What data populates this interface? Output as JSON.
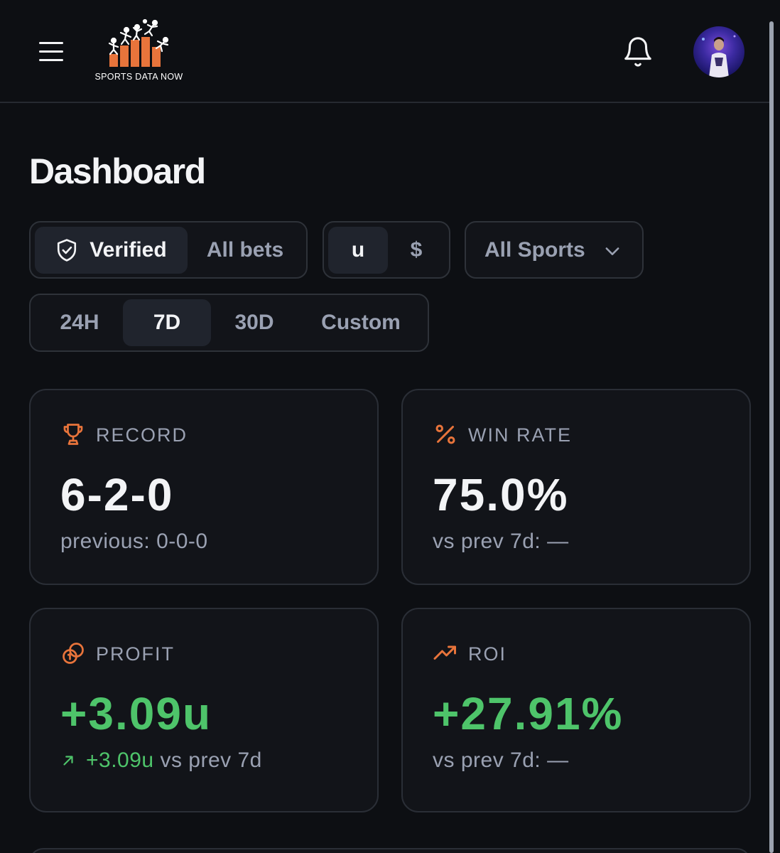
{
  "header": {
    "logo_text": "SPORTS DATA NOW"
  },
  "page_title": "Dashboard",
  "filters": {
    "verification": [
      {
        "label": "Verified",
        "active": true
      },
      {
        "label": "All bets",
        "active": false
      }
    ],
    "units": [
      {
        "label": "u",
        "active": true
      },
      {
        "label": "$",
        "active": false
      }
    ],
    "sport_select": {
      "label": "All Sports"
    },
    "periods": [
      {
        "label": "24H",
        "active": false
      },
      {
        "label": "7D",
        "active": true
      },
      {
        "label": "30D",
        "active": false
      },
      {
        "label": "Custom",
        "active": false
      }
    ]
  },
  "cards": {
    "record": {
      "label": "RECORD",
      "value": "6-2-0",
      "sub": "previous: 0-0-0"
    },
    "win_rate": {
      "label": "WIN RATE",
      "value": "75.0%",
      "sub": "vs prev 7d: —"
    },
    "profit": {
      "label": "PROFIT",
      "value": "+3.09u",
      "sub_delta": "+3.09u",
      "sub_text": "vs prev 7d"
    },
    "roi": {
      "label": "ROI",
      "value": "+27.91%",
      "sub": "vs prev 7d: —"
    }
  },
  "colors": {
    "accent_orange": "#e8743b",
    "positive_green": "#4ec46a",
    "background": "#0d0f13",
    "card": "#121419"
  },
  "icons": [
    "menu-icon",
    "bell-icon",
    "shield-check-icon",
    "chevron-down-icon",
    "trophy-icon",
    "percent-icon",
    "coins-icon",
    "trend-up-icon",
    "arrow-up-right-icon"
  ]
}
